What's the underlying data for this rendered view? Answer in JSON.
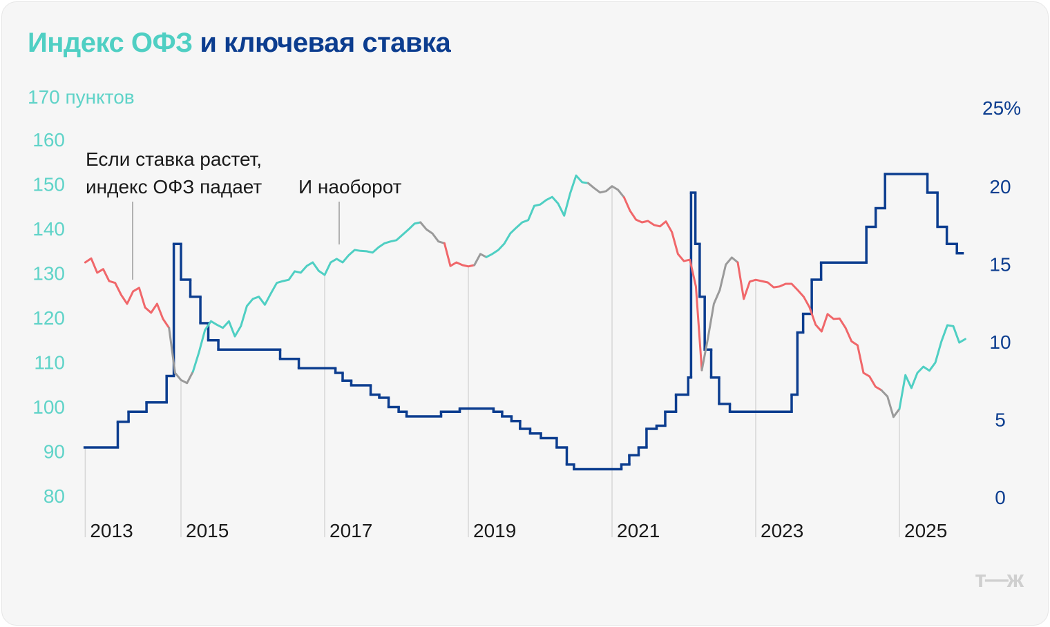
{
  "title": {
    "part1": "Индекс ОФЗ",
    "part2": " и ключевая ставка"
  },
  "logo": "т—ж",
  "chart_data": {
    "type": "line",
    "title": "Индекс ОФЗ и ключевая ставка",
    "left_axis": {
      "label": "170 пунктов",
      "ticks": [
        80,
        90,
        100,
        110,
        120,
        130,
        140,
        150,
        160
      ],
      "range": [
        80,
        170
      ]
    },
    "right_axis": {
      "label": "25%",
      "ticks": [
        0,
        5,
        10,
        15,
        20
      ],
      "range": [
        0,
        25
      ]
    },
    "x_ticks": [
      {
        "label": "2013",
        "year": 2013.667
      },
      {
        "label": "2015",
        "year": 2015
      },
      {
        "label": "2017",
        "year": 2017
      },
      {
        "label": "2019",
        "year": 2019
      },
      {
        "label": "2021",
        "year": 2021
      },
      {
        "label": "2023",
        "year": 2023
      },
      {
        "label": "2025",
        "year": 2025
      }
    ],
    "annotations": [
      {
        "lines": [
          "Если ставка растет,",
          "индекс ОФЗ падает"
        ],
        "year": 2013.97
      },
      {
        "lines": [
          "И наоборот"
        ],
        "year": 2017.2
      }
    ],
    "colors": {
      "rising": "#4fcfc3",
      "falling": "#f0676a",
      "transition": "#9a9a9a",
      "rate": "#0c3d8f"
    },
    "index_series": {
      "name": "Индекс ОФЗ",
      "start_year": 2013.667,
      "step": "month",
      "values": [
        132.4,
        133.3,
        130.1,
        130.9,
        128.2,
        127.8,
        125.1,
        123.1,
        125.9,
        126.7,
        122.3,
        121.1,
        123.1,
        119.7,
        117.7,
        107.6,
        106.0,
        105.3,
        107.9,
        112.2,
        117.2,
        119.2,
        118.4,
        117.7,
        119.2,
        115.8,
        118.1,
        122.6,
        124.2,
        124.7,
        122.9,
        125.4,
        127.8,
        128.2,
        128.5,
        130.4,
        130.1,
        131.6,
        132.4,
        130.5,
        129.6,
        132.4,
        133.2,
        132.4,
        134.0,
        135.2,
        135.0,
        134.9,
        134.6,
        135.8,
        136.7,
        137.1,
        137.4,
        138.6,
        139.8,
        141.1,
        141.4,
        139.8,
        138.9,
        137.1,
        136.7,
        131.6,
        132.4,
        131.8,
        131.5,
        131.8,
        134.3,
        133.6,
        134.3,
        135.2,
        136.6,
        138.9,
        140.2,
        141.4,
        141.9,
        145.1,
        145.4,
        146.4,
        147.1,
        145.6,
        142.9,
        147.9,
        151.9,
        150.4,
        150.2,
        149.1,
        148.1,
        148.4,
        149.5,
        148.7,
        147.0,
        144.0,
        142.0,
        141.4,
        141.7,
        140.8,
        140.5,
        141.6,
        139.2,
        134.3,
        132.7,
        133.0,
        127.0,
        108.2,
        115.3,
        123.1,
        126.2,
        131.9,
        133.5,
        132.4,
        124.2,
        128.1,
        128.5,
        128.2,
        127.9,
        126.8,
        127.0,
        127.6,
        127.6,
        126.2,
        124.7,
        122.3,
        118.4,
        116.9,
        120.8,
        119.7,
        119.8,
        117.7,
        114.7,
        113.8,
        107.6,
        106.8,
        104.5,
        103.7,
        102.3,
        97.7,
        99.5,
        107.1,
        104.2,
        107.6,
        109.0,
        108.1,
        109.9,
        114.6,
        118.3,
        118.1,
        114.4,
        115.2
      ],
      "segments": [
        {
          "from": 0,
          "to": 14,
          "trend": "falling"
        },
        {
          "from": 14,
          "to": 18,
          "trend": "transition"
        },
        {
          "from": 18,
          "to": 56,
          "trend": "rising"
        },
        {
          "from": 56,
          "to": 60,
          "trend": "transition"
        },
        {
          "from": 60,
          "to": 65,
          "trend": "falling"
        },
        {
          "from": 65,
          "to": 67,
          "trend": "transition"
        },
        {
          "from": 67,
          "to": 84,
          "trend": "rising"
        },
        {
          "from": 84,
          "to": 90,
          "trend": "transition"
        },
        {
          "from": 90,
          "to": 103,
          "trend": "falling"
        },
        {
          "from": 103,
          "to": 109,
          "trend": "transition"
        },
        {
          "from": 109,
          "to": 133,
          "trend": "falling"
        },
        {
          "from": 133,
          "to": 136,
          "trend": "transition"
        },
        {
          "from": 136,
          "to": 148,
          "trend": "rising"
        }
      ]
    },
    "rate_series": {
      "name": "Ключевая ставка, %",
      "steps": [
        [
          13.66,
          3.2
        ],
        [
          14.12,
          4.85
        ],
        [
          14.27,
          5.5
        ],
        [
          14.52,
          6.1
        ],
        [
          14.8,
          7.8
        ],
        [
          14.9,
          16.3
        ],
        [
          15.0,
          14.0
        ],
        [
          15.13,
          12.9
        ],
        [
          15.27,
          11.2
        ],
        [
          15.38,
          10.1
        ],
        [
          15.52,
          9.5
        ],
        [
          16.38,
          8.9
        ],
        [
          16.64,
          8.3
        ],
        [
          17.15,
          8.0
        ],
        [
          17.25,
          7.5
        ],
        [
          17.37,
          7.2
        ],
        [
          17.64,
          6.6
        ],
        [
          17.76,
          6.4
        ],
        [
          17.89,
          5.8
        ],
        [
          18.03,
          5.5
        ],
        [
          18.14,
          5.2
        ],
        [
          18.62,
          5.5
        ],
        [
          18.88,
          5.7
        ],
        [
          19.35,
          5.5
        ],
        [
          19.47,
          5.2
        ],
        [
          19.6,
          4.9
        ],
        [
          19.72,
          4.4
        ],
        [
          19.86,
          4.1
        ],
        [
          20.01,
          3.8
        ],
        [
          20.23,
          3.2
        ],
        [
          20.37,
          2.1
        ],
        [
          20.47,
          1.8
        ],
        [
          21.13,
          2.1
        ],
        [
          21.24,
          2.7
        ],
        [
          21.37,
          3.2
        ],
        [
          21.48,
          4.4
        ],
        [
          21.62,
          4.6
        ],
        [
          21.74,
          5.5
        ],
        [
          21.89,
          6.6
        ],
        [
          22.06,
          7.7
        ],
        [
          22.1,
          19.6
        ],
        [
          22.16,
          16.3
        ],
        [
          22.22,
          12.9
        ],
        [
          22.29,
          9.5
        ],
        [
          22.38,
          7.7
        ],
        [
          22.49,
          6.0
        ],
        [
          22.64,
          5.5
        ],
        [
          23.5,
          6.6
        ],
        [
          23.58,
          10.6
        ],
        [
          23.66,
          11.8
        ],
        [
          23.78,
          14.0
        ],
        [
          23.91,
          15.1
        ],
        [
          24.54,
          17.4
        ],
        [
          24.67,
          18.6
        ],
        [
          24.8,
          20.8
        ],
        [
          25.39,
          19.6
        ],
        [
          25.53,
          17.4
        ],
        [
          25.66,
          16.3
        ],
        [
          25.8,
          15.7
        ]
      ],
      "end_year": 25.88
    }
  }
}
